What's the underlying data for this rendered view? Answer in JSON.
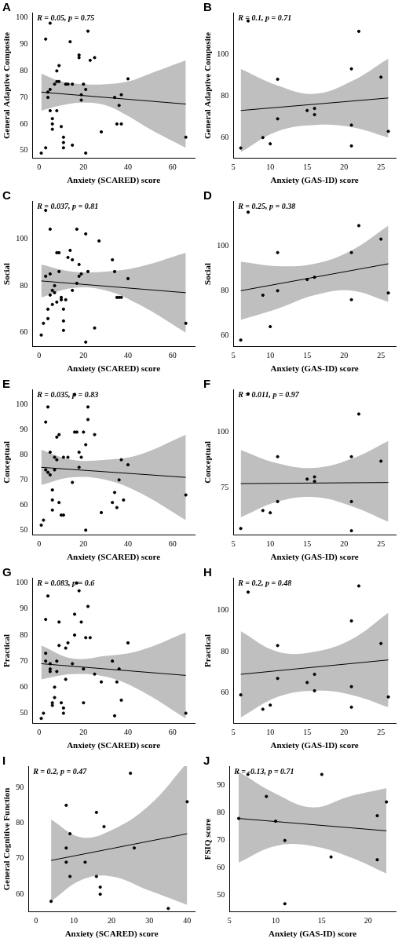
{
  "chart_data": [
    {
      "type": "scatter",
      "panel": "A",
      "annotation": "R = 0.05, p = 0.75",
      "x_label": "Anxiety (SCARED) score",
      "y_label": "General Adaptive Composite",
      "color": "#000000",
      "x": [
        1,
        3,
        3,
        4,
        4,
        5,
        5,
        5,
        6,
        6,
        6,
        7,
        8,
        8,
        8,
        9,
        9,
        10,
        11,
        11,
        11,
        12,
        13,
        14,
        15,
        15,
        18,
        18,
        19,
        19,
        20,
        21,
        21,
        22,
        23,
        25,
        28,
        34,
        35,
        36,
        37,
        37,
        40,
        66
      ],
      "y": [
        49,
        51,
        92,
        72,
        70,
        98,
        65,
        73,
        62,
        60,
        58,
        75,
        80,
        65,
        76,
        82,
        76,
        59,
        51,
        55,
        53,
        75,
        75,
        91,
        52,
        75,
        86,
        85,
        69,
        71,
        75,
        73,
        49,
        95,
        84,
        85,
        57,
        70,
        60,
        67,
        71,
        60,
        77,
        55
      ],
      "fit": {
        "x": [
          1,
          66
        ],
        "y": [
          72,
          67.5
        ]
      },
      "band": {
        "x": [
          1,
          10,
          20,
          30,
          40,
          50,
          66
        ],
        "lower": [
          65,
          67,
          68,
          67,
          63,
          58,
          51
        ],
        "upper": [
          79,
          76,
          75,
          75,
          76,
          79,
          84
        ]
      },
      "xlim": [
        -3,
        70
      ],
      "ylim": [
        47,
        102
      ],
      "xticks": [
        0,
        20,
        40,
        60
      ],
      "yticks": [
        50,
        60,
        70,
        80,
        90,
        100
      ]
    },
    {
      "type": "scatter",
      "panel": "B",
      "annotation": "R = 0.1, p = 0.71",
      "x_label": "Anxiety (GAS-ID) score",
      "y_label": "General Adaptive Composite",
      "color": "#000000",
      "x": [
        6,
        7,
        9,
        10,
        11,
        11,
        15,
        16,
        16,
        21,
        21,
        21,
        22,
        25,
        26
      ],
      "y": [
        55,
        116,
        60,
        57,
        88,
        69,
        73,
        74,
        71,
        93,
        66,
        56,
        111,
        89,
        63
      ],
      "fit": {
        "x": [
          6,
          26
        ],
        "y": [
          73,
          79
        ]
      },
      "band": {
        "x": [
          6,
          11,
          16,
          21,
          26
        ],
        "lower": [
          53,
          63,
          66,
          65,
          60
        ],
        "upper": [
          93,
          85,
          81,
          87,
          98
        ]
      },
      "xlim": [
        5,
        27
      ],
      "ylim": [
        50,
        120
      ],
      "xticks": [
        5,
        10,
        15,
        20,
        25
      ],
      "yticks": [
        60,
        80,
        100
      ]
    },
    {
      "type": "scatter",
      "panel": "C",
      "annotation": "R = 0.037, p = 0.81",
      "x_label": "Anxiety (SCARED) score",
      "y_label": "Social",
      "color": "#000000",
      "x": [
        1,
        2,
        3,
        3,
        4,
        4,
        5,
        5,
        5,
        6,
        6,
        7,
        7,
        8,
        8,
        9,
        9,
        10,
        10,
        11,
        11,
        11,
        12,
        13,
        14,
        15,
        15,
        17,
        17,
        18,
        18,
        19,
        21,
        21,
        22,
        25,
        27,
        33,
        34,
        35,
        36,
        37,
        40,
        66
      ],
      "y": [
        59,
        64,
        84,
        112,
        70,
        66,
        76,
        104,
        85,
        78,
        72,
        77,
        80,
        94,
        73,
        86,
        94,
        74,
        75,
        61,
        65,
        70,
        74,
        92,
        95,
        91,
        78,
        81,
        104,
        84,
        89,
        85,
        56,
        102,
        86,
        62,
        99,
        91,
        86,
        75,
        75,
        75,
        83,
        64
      ],
      "fit": {
        "x": [
          1,
          66
        ],
        "y": [
          82,
          77
        ]
      },
      "band": {
        "x": [
          1,
          15,
          30,
          45,
          66
        ],
        "lower": [
          75,
          79,
          78,
          72,
          60
        ],
        "upper": [
          89,
          86,
          86,
          88,
          94
        ]
      },
      "xlim": [
        -3,
        70
      ],
      "ylim": [
        54,
        116
      ],
      "xticks": [
        0,
        20,
        40,
        60
      ],
      "yticks": [
        60,
        80,
        100
      ]
    },
    {
      "type": "scatter",
      "panel": "D",
      "annotation": "R = 0.25, p = 0.38",
      "x_label": "Anxiety (GAS-ID) score",
      "y_label": "Social",
      "color": "#000000",
      "x": [
        6,
        7,
        9,
        10,
        11,
        11,
        15,
        16,
        21,
        21,
        22,
        25,
        26
      ],
      "y": [
        58,
        115,
        78,
        64,
        80,
        97,
        85,
        86,
        97,
        76,
        109,
        103,
        79
      ],
      "fit": {
        "x": [
          6,
          26
        ],
        "y": [
          80,
          92
        ]
      },
      "band": {
        "x": [
          6,
          11,
          16,
          21,
          26
        ],
        "lower": [
          67,
          72,
          78,
          80,
          75
        ],
        "upper": [
          93,
          91,
          92,
          98,
          109
        ]
      },
      "xlim": [
        5,
        27
      ],
      "ylim": [
        55,
        120
      ],
      "xticks": [
        5,
        10,
        15,
        20,
        25
      ],
      "yticks": [
        60,
        80,
        100
      ]
    },
    {
      "type": "scatter",
      "panel": "E",
      "annotation": "R = 0.035, p = 0.83",
      "x_label": "Anxiety (SCARED) score",
      "y_label": "Conceptual",
      "color": "#000000",
      "x": [
        1,
        2,
        3,
        3,
        4,
        4,
        5,
        5,
        6,
        6,
        6,
        7,
        7,
        8,
        8,
        9,
        9,
        10,
        11,
        11,
        13,
        15,
        16,
        16,
        17,
        18,
        18,
        19,
        20,
        21,
        21,
        22,
        22,
        25,
        28,
        33,
        34,
        35,
        36,
        37,
        38,
        40,
        66
      ],
      "y": [
        52,
        54,
        93,
        74,
        73,
        99,
        72,
        81,
        66,
        62,
        58,
        74,
        79,
        78,
        87,
        88,
        61,
        56,
        56,
        79,
        79,
        69,
        104,
        89,
        89,
        75,
        81,
        79,
        89,
        50,
        84,
        99,
        94,
        88,
        57,
        61,
        65,
        59,
        70,
        78,
        62,
        76,
        64
      ],
      "fit": {
        "x": [
          1,
          66
        ],
        "y": [
          75,
          71
        ]
      },
      "band": {
        "x": [
          1,
          15,
          30,
          45,
          66
        ],
        "lower": [
          68,
          71,
          70,
          65,
          54
        ],
        "upper": [
          82,
          78,
          78,
          80,
          88
        ]
      },
      "xlim": [
        -3,
        70
      ],
      "ylim": [
        48,
        106
      ],
      "xticks": [
        0,
        20,
        40,
        60
      ],
      "yticks": [
        50,
        60,
        70,
        80,
        90,
        100
      ]
    },
    {
      "type": "scatter",
      "panel": "F",
      "annotation": "R = 0.011, p = 0.97",
      "x_label": "Anxiety (GAS-ID) score",
      "y_label": "Conceptual",
      "color": "#000000",
      "x": [
        6,
        7,
        9,
        10,
        11,
        11,
        15,
        16,
        16,
        21,
        21,
        21,
        22,
        25
      ],
      "y": [
        57,
        117,
        65,
        64,
        69,
        89,
        79,
        80,
        78,
        89,
        69,
        56,
        108,
        87
      ],
      "fit": {
        "x": [
          6,
          26
        ],
        "y": [
          77,
          77.5
        ]
      },
      "band": {
        "x": [
          6,
          11,
          16,
          21,
          26
        ],
        "lower": [
          62,
          69,
          71,
          67,
          60
        ],
        "upper": [
          92,
          86,
          84,
          88,
          96
        ]
      },
      "xlim": [
        5,
        27
      ],
      "ylim": [
        54,
        119
      ],
      "xticks": [
        5,
        10,
        15,
        20,
        25
      ],
      "yticks": [
        75,
        100
      ]
    },
    {
      "type": "scatter",
      "panel": "G",
      "annotation": "R = 0.083, p = 0.6",
      "x_label": "Anxiety (SCARED) score",
      "y_label": "Practical",
      "color": "#000000",
      "x": [
        1,
        2,
        3,
        3,
        3,
        4,
        5,
        5,
        5,
        6,
        6,
        7,
        7,
        8,
        8,
        9,
        9,
        10,
        11,
        11,
        12,
        12,
        13,
        15,
        16,
        16,
        17,
        18,
        19,
        20,
        20,
        21,
        22,
        23,
        25,
        28,
        33,
        34,
        35,
        36,
        37,
        40,
        66
      ],
      "y": [
        48,
        50,
        86,
        70,
        73,
        95,
        66,
        69,
        67,
        54,
        53,
        56,
        60,
        70,
        66,
        85,
        76,
        54,
        52,
        50,
        63,
        75,
        77,
        69,
        80,
        88,
        100,
        97,
        85,
        67,
        54,
        79,
        91,
        79,
        65,
        62,
        70,
        49,
        62,
        67,
        55,
        77,
        50
      ],
      "fit": {
        "x": [
          1,
          66
        ],
        "y": [
          69,
          64.5
        ]
      },
      "band": {
        "x": [
          1,
          15,
          30,
          45,
          66
        ],
        "lower": [
          63,
          65,
          64,
          59,
          48
        ],
        "upper": [
          76,
          71,
          72,
          74,
          81
        ]
      },
      "xlim": [
        -3,
        70
      ],
      "ylim": [
        46,
        102
      ],
      "xticks": [
        0,
        20,
        40,
        60
      ],
      "yticks": [
        50,
        60,
        70,
        80,
        90,
        100
      ]
    },
    {
      "type": "scatter",
      "panel": "H",
      "annotation": "R = 0.2, p = 0.48",
      "x_label": "Anxiety (GAS-ID) score",
      "y_label": "Practical",
      "color": "#000000",
      "x": [
        6,
        7,
        9,
        10,
        11,
        11,
        15,
        16,
        16,
        21,
        21,
        21,
        22,
        25,
        26
      ],
      "y": [
        59,
        109,
        52,
        54,
        83,
        67,
        65,
        69,
        61,
        95,
        63,
        53,
        112,
        84,
        58
      ],
      "fit": {
        "x": [
          6,
          26
        ],
        "y": [
          69,
          76
        ]
      },
      "band": {
        "x": [
          6,
          11,
          16,
          21,
          26
        ],
        "lower": [
          48,
          58,
          61,
          59,
          53
        ],
        "upper": [
          90,
          80,
          80,
          86,
          99
        ]
      },
      "xlim": [
        5,
        27
      ],
      "ylim": [
        45,
        116
      ],
      "xticks": [
        5,
        10,
        15,
        20,
        25
      ],
      "yticks": [
        60,
        80,
        100
      ]
    },
    {
      "type": "scatter",
      "panel": "I",
      "annotation": "R = 0.2, p = 0.47",
      "x_label": "Anxiety (SCARED) score",
      "y_label": "General Cognitive Function",
      "color": "#000000",
      "x": [
        4,
        8,
        8,
        8,
        9,
        9,
        13,
        16,
        16,
        17,
        17,
        18,
        25,
        26,
        35,
        40
      ],
      "y": [
        58,
        85,
        73,
        69,
        65,
        77,
        69,
        83,
        65,
        62,
        60,
        79,
        94,
        73,
        56,
        86
      ],
      "fit": {
        "x": [
          4,
          40
        ],
        "y": [
          69.5,
          77
        ]
      },
      "band": {
        "x": [
          4,
          12,
          20,
          30,
          40
        ],
        "lower": [
          58,
          64,
          65,
          61,
          57
        ],
        "upper": [
          81,
          76,
          78,
          85,
          97
        ]
      },
      "xlim": [
        -2,
        42
      ],
      "ylim": [
        55,
        96
      ],
      "xticks": [
        0,
        10,
        20,
        30,
        40
      ],
      "yticks": [
        60,
        70,
        80,
        90
      ]
    },
    {
      "type": "scatter",
      "panel": "J",
      "annotation": "R = -0.13, p = 0.71",
      "x_label": "Anxiety (GAS-ID) score",
      "y_label": "FSIQ score",
      "color": "#000000",
      "x": [
        6,
        7,
        9,
        10,
        11,
        11,
        15,
        16,
        21,
        21,
        22
      ],
      "y": [
        78,
        94,
        86,
        77,
        70,
        47,
        94,
        64,
        79,
        63,
        84
      ],
      "fit": {
        "x": [
          6,
          22
        ],
        "y": [
          78,
          73.5
        ]
      },
      "band": {
        "x": [
          6,
          10,
          14,
          18,
          22
        ],
        "lower": [
          62,
          68,
          68,
          64,
          58
        ],
        "upper": [
          95,
          87,
          82,
          86,
          89
        ]
      },
      "xlim": [
        5,
        23
      ],
      "ylim": [
        44,
        97
      ],
      "xticks": [
        5,
        10,
        15,
        20
      ],
      "yticks": [
        50,
        60,
        70,
        80,
        90
      ]
    }
  ]
}
